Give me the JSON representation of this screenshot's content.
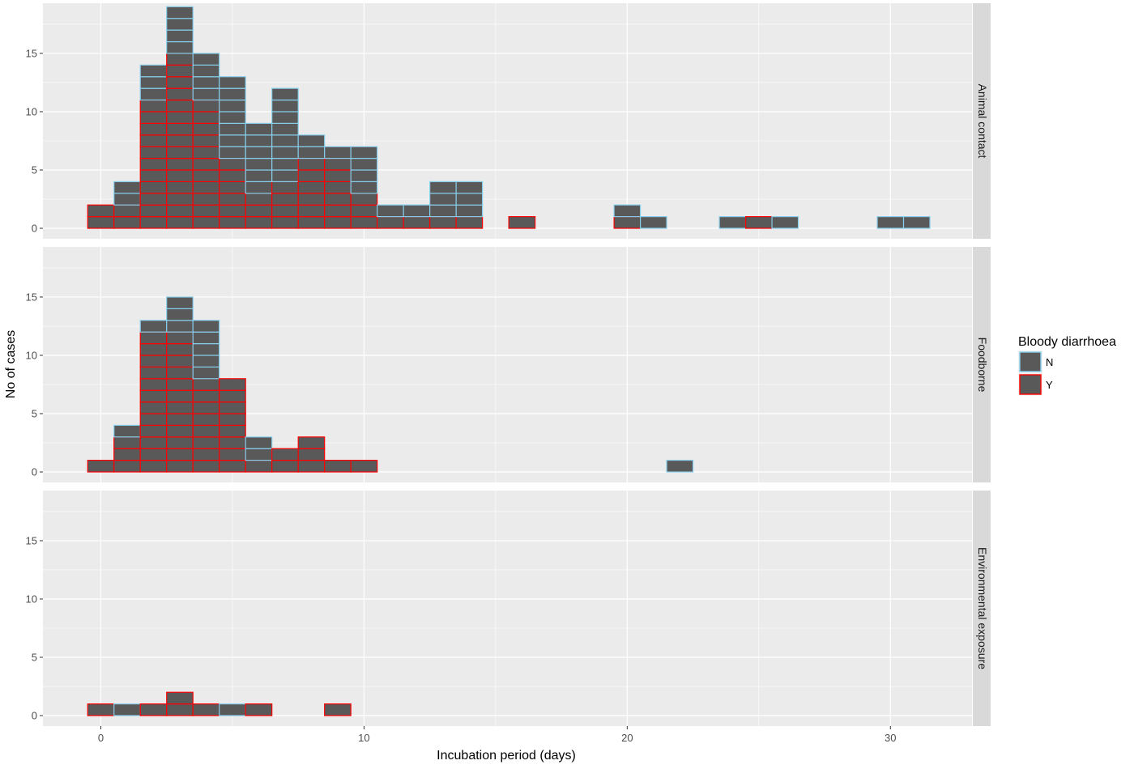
{
  "chart_data": {
    "type": "bar",
    "xlabel": "Incubation period (days)",
    "ylabel": "No of cases",
    "x_ticks": [
      0,
      10,
      20,
      30
    ],
    "y_ticks": [
      0,
      5,
      10,
      15
    ],
    "xlim": [
      -2.2,
      33.1
    ],
    "ylim": [
      -0.9,
      19.3
    ],
    "grid": true,
    "legend": {
      "title": "Bloody diarrhoea",
      "position": "right",
      "entries": [
        {
          "label": "N",
          "outline": "#87ceeb"
        },
        {
          "label": "Y",
          "outline": "#ff0000"
        }
      ]
    },
    "bar_fill": "#595959",
    "panel_background": "#ebebeb",
    "strip_background": "#d9d9d9",
    "panels": [
      {
        "label": "Animal contact",
        "bars": [
          {
            "x": 0,
            "Y": 2,
            "N": 0
          },
          {
            "x": 1,
            "Y": 2,
            "N": 2
          },
          {
            "x": 2,
            "Y": 11,
            "N": 3
          },
          {
            "x": 3,
            "Y": 15,
            "N": 4
          },
          {
            "x": 4,
            "Y": 11,
            "N": 4
          },
          {
            "x": 5,
            "Y": 6,
            "N": 7
          },
          {
            "x": 6,
            "Y": 3,
            "N": 6
          },
          {
            "x": 7,
            "Y": 4,
            "N": 8
          },
          {
            "x": 8,
            "Y": 6,
            "N": 2
          },
          {
            "x": 9,
            "Y": 6,
            "N": 1
          },
          {
            "x": 10,
            "Y": 3,
            "N": 4
          },
          {
            "x": 11,
            "Y": 1,
            "N": 1
          },
          {
            "x": 12,
            "Y": 1,
            "N": 1
          },
          {
            "x": 13,
            "Y": 1,
            "N": 3
          },
          {
            "x": 14,
            "Y": 1,
            "N": 3
          },
          {
            "x": 16,
            "Y": 1,
            "N": 0
          },
          {
            "x": 20,
            "Y": 1,
            "N": 1
          },
          {
            "x": 21,
            "Y": 0,
            "N": 1
          },
          {
            "x": 24,
            "Y": 0,
            "N": 1
          },
          {
            "x": 25,
            "Y": 1,
            "N": 0
          },
          {
            "x": 26,
            "Y": 0,
            "N": 1
          },
          {
            "x": 30,
            "Y": 0,
            "N": 1
          },
          {
            "x": 31,
            "Y": 0,
            "N": 1
          }
        ]
      },
      {
        "label": "Foodborne",
        "bars": [
          {
            "x": 0,
            "Y": 1,
            "N": 0
          },
          {
            "x": 1,
            "Y": 3,
            "N": 1
          },
          {
            "x": 2,
            "Y": 12,
            "N": 1
          },
          {
            "x": 3,
            "Y": 12,
            "N": 3
          },
          {
            "x": 4,
            "Y": 8,
            "N": 5
          },
          {
            "x": 5,
            "Y": 8,
            "N": 0
          },
          {
            "x": 6,
            "Y": 1,
            "N": 2
          },
          {
            "x": 7,
            "Y": 2,
            "N": 0
          },
          {
            "x": 8,
            "Y": 3,
            "N": 0
          },
          {
            "x": 9,
            "Y": 1,
            "N": 0
          },
          {
            "x": 10,
            "Y": 1,
            "N": 0
          },
          {
            "x": 22,
            "Y": 0,
            "N": 1
          }
        ]
      },
      {
        "label": "Environmental exposure",
        "bars": [
          {
            "x": 0,
            "Y": 1,
            "N": 0
          },
          {
            "x": 1,
            "Y": 0,
            "N": 1
          },
          {
            "x": 2,
            "Y": 1,
            "N": 0
          },
          {
            "x": 3,
            "Y": 2,
            "N": 0
          },
          {
            "x": 4,
            "Y": 1,
            "N": 0
          },
          {
            "x": 5,
            "Y": 0,
            "N": 1
          },
          {
            "x": 6,
            "Y": 1,
            "N": 0
          },
          {
            "x": 9,
            "Y": 1,
            "N": 0
          }
        ]
      }
    ]
  }
}
